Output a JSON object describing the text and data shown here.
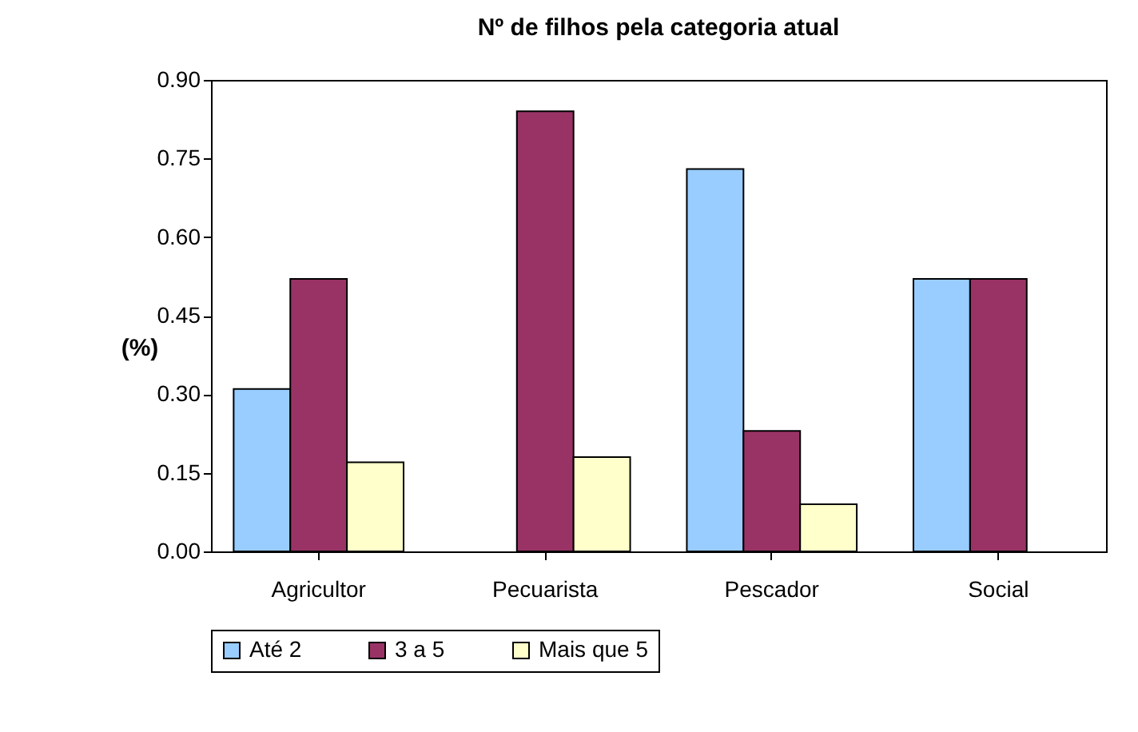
{
  "chart_data": {
    "type": "bar",
    "title": "Nº de filhos pela categoria atual",
    "ylabel": "(%)",
    "categories": [
      "Agricultor",
      "Pecuarista",
      "Pescador",
      "Social"
    ],
    "series": [
      {
        "name": "Até 2",
        "color": "#99ccff",
        "values": [
          0.31,
          null,
          0.73,
          0.52
        ]
      },
      {
        "name": "3 a 5",
        "color": "#993366",
        "values": [
          0.52,
          0.84,
          0.23,
          0.52
        ]
      },
      {
        "name": "Mais que 5",
        "color": "#ffffcc",
        "values": [
          0.17,
          0.18,
          0.09,
          null
        ]
      }
    ],
    "ylim": [
      0,
      0.9
    ],
    "yticks": [
      {
        "value": 0,
        "label": "0.00"
      },
      {
        "value": 0.15,
        "label": "0.15"
      },
      {
        "value": 0.3,
        "label": "0.30"
      },
      {
        "value": 0.45,
        "label": "0.45"
      },
      {
        "value": 0.6,
        "label": "0.60"
      },
      {
        "value": 0.75,
        "label": "0.75"
      },
      {
        "value": 0.9,
        "label": "0.90"
      }
    ],
    "legend": "bottom"
  }
}
